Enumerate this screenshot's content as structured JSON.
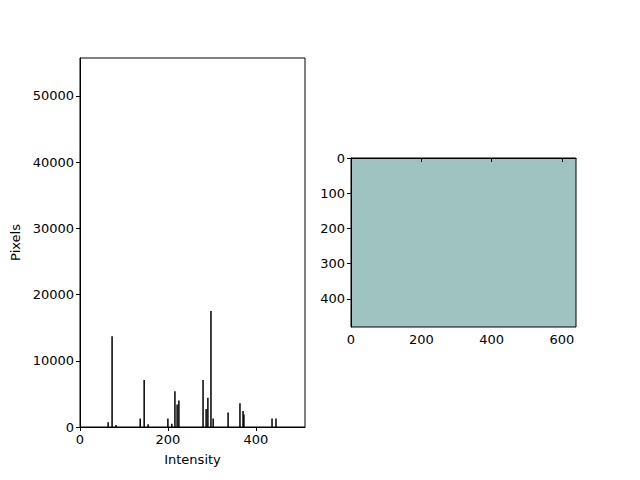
{
  "chart_data": [
    {
      "type": "bar",
      "x_label": "Intensity",
      "y_label": "Pixels",
      "x": [
        64,
        73,
        82,
        137,
        146,
        155,
        200,
        209,
        216,
        221,
        225,
        280,
        287,
        291,
        298,
        303,
        337,
        364,
        371,
        373,
        437,
        446
      ],
      "values": [
        700,
        13700,
        300,
        1300,
        7100,
        400,
        1300,
        500,
        5400,
        3400,
        4000,
        7100,
        2700,
        4400,
        17500,
        1300,
        2200,
        3600,
        2400,
        1900,
        1300,
        1300
      ],
      "color": "#000000",
      "xlim": [
        0,
        512
      ],
      "ylim": [
        0,
        55700
      ],
      "xticks": [
        0,
        200,
        400
      ],
      "yticks": [
        0,
        10000,
        20000,
        30000,
        40000,
        50000
      ]
    },
    {
      "type": "image",
      "xlim": [
        0,
        640
      ],
      "ylim": [
        480,
        0
      ],
      "xticks": [
        0,
        200,
        400,
        600
      ],
      "yticks": [
        0,
        100,
        200,
        300,
        400
      ]
    }
  ]
}
